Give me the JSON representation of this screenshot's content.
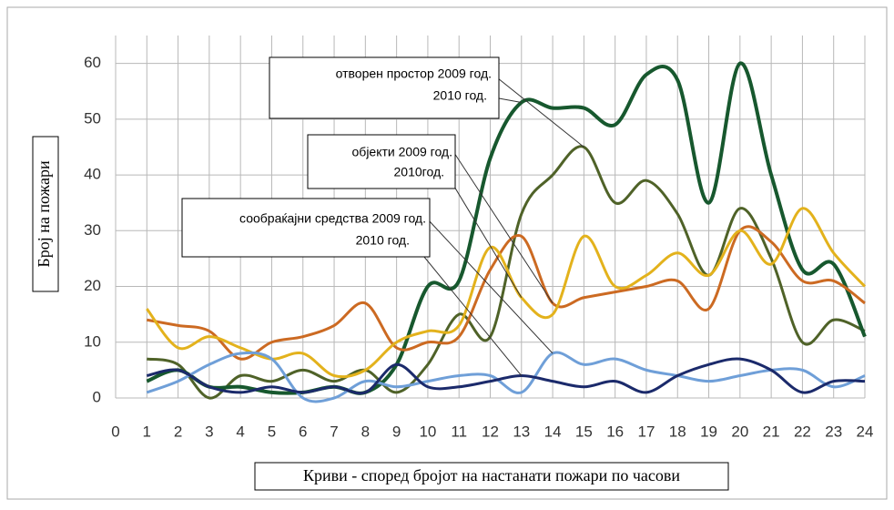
{
  "chart_data": {
    "type": "line",
    "y_label": "Број на пожари",
    "x_label": "Криви - според бројот на настанати пожари по часови",
    "x": [
      1,
      2,
      3,
      4,
      5,
      6,
      7,
      8,
      9,
      10,
      11,
      12,
      13,
      14,
      15,
      16,
      17,
      18,
      19,
      20,
      21,
      22,
      23,
      24
    ],
    "xlim": [
      0,
      24
    ],
    "xticks": [
      0,
      1,
      2,
      3,
      4,
      5,
      6,
      7,
      8,
      9,
      10,
      11,
      12,
      13,
      14,
      15,
      16,
      17,
      18,
      19,
      20,
      21,
      22,
      23,
      24
    ],
    "ylim": [
      0,
      65
    ],
    "yticks": [
      0,
      10,
      20,
      30,
      40,
      50,
      60
    ],
    "grid": true,
    "series": [
      {
        "name": "отворен простор 2009 год.",
        "color": "#4f6228",
        "values": [
          7,
          6,
          0,
          4,
          3,
          5,
          3,
          5,
          1,
          6,
          15,
          11,
          33,
          40,
          45,
          35,
          39,
          33,
          22,
          34,
          25,
          10,
          14,
          12
        ]
      },
      {
        "name": "2010 год.",
        "color": "#17582e",
        "values": [
          3,
          5,
          2,
          2,
          1,
          1,
          2,
          1,
          6,
          20,
          21,
          43,
          53,
          52,
          52,
          49,
          58,
          57,
          35,
          60,
          40,
          23,
          24,
          11
        ]
      },
      {
        "name": "објекти 2009 год.",
        "color": "#cc6a22",
        "values": [
          14,
          13,
          12,
          7,
          10,
          11,
          13,
          17,
          9,
          10,
          11,
          23,
          29,
          17,
          18,
          19,
          20,
          21,
          16,
          30,
          28,
          21,
          21,
          17
        ]
      },
      {
        "name": "2010год.",
        "color": "#e3b21c",
        "values": [
          16,
          9,
          11,
          9,
          7,
          8,
          4,
          5,
          10,
          12,
          13,
          27,
          18,
          15,
          29,
          20,
          22,
          26,
          22,
          30,
          24,
          34,
          26,
          20
        ]
      },
      {
        "name": "сообраќајни средства 2009 год.",
        "color": "#6f9fd8",
        "values": [
          1,
          3,
          6,
          8,
          7,
          0,
          0,
          3,
          2,
          3,
          4,
          4,
          1,
          8,
          6,
          7,
          5,
          4,
          3,
          4,
          5,
          5,
          2,
          4
        ]
      },
      {
        "name": "2010 год.",
        "color": "#1b2a6b",
        "values": [
          4,
          5,
          2,
          1,
          2,
          1,
          2,
          1,
          6,
          2,
          2,
          3,
          4,
          3,
          2,
          3,
          1,
          4,
          6,
          7,
          5,
          1,
          3,
          3
        ]
      }
    ]
  }
}
